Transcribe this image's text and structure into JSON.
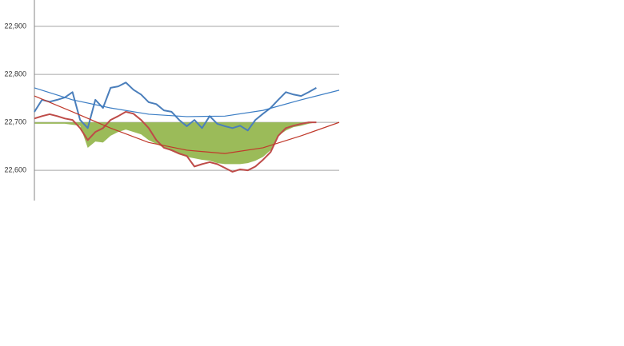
{
  "chart_data": {
    "type": "line",
    "x": [
      0,
      1,
      2,
      3,
      4,
      5,
      6,
      7,
      8,
      9,
      10,
      11,
      12,
      13,
      14,
      15,
      16,
      17,
      18,
      19,
      20,
      21,
      22,
      23,
      24,
      25,
      26,
      27,
      28,
      29,
      30,
      31,
      32,
      33,
      34,
      35,
      36,
      37
    ],
    "xlim": [
      0,
      40
    ],
    "ylim": [
      22537,
      22955
    ],
    "yticks": [
      {
        "value": 22600,
        "label": "22,600"
      },
      {
        "value": 22700,
        "label": "22,700"
      },
      {
        "value": 22800,
        "label": "22,800"
      },
      {
        "value": 22900,
        "label": "22,900"
      }
    ],
    "grid": true,
    "area": {
      "color": "#9bbb59",
      "baseline": 22700,
      "values": [
        22697,
        22697,
        22697,
        22697,
        22697,
        22695,
        22693,
        22647,
        22660,
        22658,
        22672,
        22680,
        22685,
        22680,
        22675,
        22663,
        22655,
        22647,
        22640,
        22633,
        22628,
        22625,
        22622,
        22620,
        22615,
        22613,
        22613,
        22613,
        22615,
        22620,
        22628,
        22642,
        22672,
        22683,
        22690,
        22693,
        22697,
        22700
      ]
    },
    "series": [
      {
        "color": "#4a7ebb",
        "values": [
          22722,
          22747,
          22743,
          22747,
          22752,
          22763,
          22705,
          22688,
          22747,
          22730,
          22772,
          22775,
          22783,
          22768,
          22758,
          22742,
          22738,
          22725,
          22722,
          22705,
          22692,
          22705,
          22688,
          22713,
          22697,
          22692,
          22688,
          22693,
          22683,
          22705,
          22718,
          22730,
          22747,
          22763,
          22758,
          22755,
          22763,
          22772
        ]
      },
      {
        "color": "#be4b48",
        "values": [
          22708,
          22713,
          22717,
          22713,
          22708,
          22705,
          22688,
          22663,
          22680,
          22688,
          22705,
          22713,
          22722,
          22718,
          22705,
          22688,
          22663,
          22647,
          22642,
          22635,
          22630,
          22608,
          22613,
          22617,
          22613,
          22605,
          22597,
          22602,
          22600,
          22608,
          22622,
          22638,
          22672,
          22688,
          22693,
          22697,
          22700,
          22700
        ]
      }
    ],
    "trendlines": [
      {
        "color": "#3b7dc4",
        "x": [
          0,
          5,
          10,
          15,
          20,
          25,
          30,
          35,
          40
        ],
        "values": [
          22772,
          22747,
          22730,
          22717,
          22712,
          22713,
          22725,
          22747,
          22767
        ]
      },
      {
        "color": "#c0392b",
        "x": [
          0,
          5,
          10,
          15,
          20,
          25,
          30,
          35,
          40
        ],
        "values": [
          22755,
          22722,
          22688,
          22658,
          22642,
          22635,
          22647,
          22672,
          22700
        ]
      }
    ]
  }
}
